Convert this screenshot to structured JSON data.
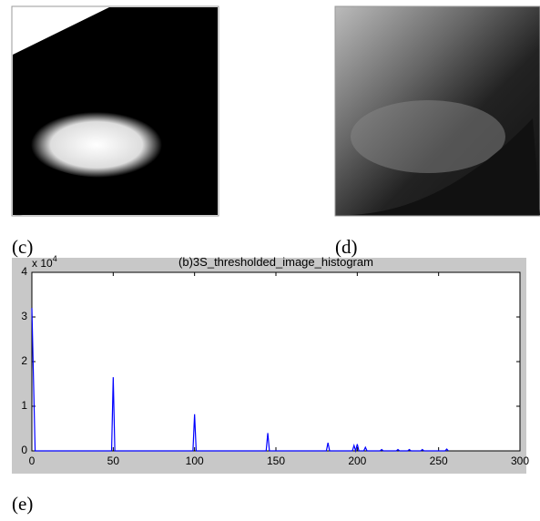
{
  "figures": [
    {
      "caption": "(c)"
    },
    {
      "caption": "(d)"
    },
    {
      "caption": "(e)"
    }
  ],
  "chart_data": {
    "type": "line",
    "title": "(b)3S_thresholded_image_histogram",
    "y_multiplier": "x 10",
    "y_multiplier_exponent": "4",
    "xlim": [
      0,
      300
    ],
    "xticks": [
      0,
      50,
      100,
      150,
      200,
      250,
      300
    ],
    "ylim": [
      0,
      40000
    ],
    "yticks": [
      {
        "value": 0,
        "label": "0"
      },
      {
        "value": 10000,
        "label": "1"
      },
      {
        "value": 20000,
        "label": "2"
      },
      {
        "value": 30000,
        "label": "3"
      },
      {
        "value": 40000,
        "label": "4"
      }
    ],
    "series": [
      {
        "color": "#0000ff",
        "x": [
          0,
          1,
          2,
          49,
          50,
          51,
          99,
          100,
          101,
          144,
          145,
          146,
          181,
          182,
          183,
          197,
          198,
          199,
          200,
          201,
          204,
          205,
          206,
          214,
          215,
          216,
          224,
          225,
          226,
          231,
          232,
          233,
          239,
          240,
          241,
          254,
          255,
          256
        ],
        "values": [
          32000,
          16000,
          0,
          0,
          16500,
          0,
          0,
          8200,
          0,
          0,
          4000,
          0,
          0,
          1800,
          0,
          0,
          1200,
          0,
          1500,
          0,
          0,
          800,
          0,
          0,
          300,
          0,
          0,
          300,
          0,
          0,
          300,
          0,
          0,
          300,
          0,
          0,
          400,
          0
        ]
      }
    ]
  }
}
